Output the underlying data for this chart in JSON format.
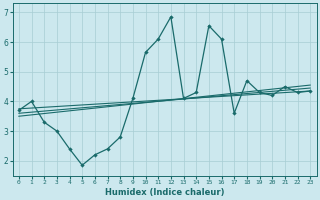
{
  "xlabel": "Humidex (Indice chaleur)",
  "bg_color": "#cce8ee",
  "line_color": "#1a6b6b",
  "grid_color": "#a8cdd4",
  "x_values": [
    0,
    1,
    2,
    3,
    4,
    5,
    6,
    7,
    8,
    9,
    10,
    11,
    12,
    13,
    14,
    15,
    16,
    17,
    18,
    19,
    20,
    21,
    22,
    23
  ],
  "line1_y": [
    3.7,
    4.0,
    3.3,
    3.0,
    2.4,
    1.85,
    2.2,
    2.4,
    2.8,
    4.1,
    5.65,
    6.1,
    6.85,
    4.1,
    4.3,
    6.55,
    6.1,
    3.6,
    4.7,
    4.3,
    4.2,
    4.5,
    4.3,
    4.35
  ],
  "trend1_start": 3.75,
  "trend1_end": 4.35,
  "trend2_start": 3.6,
  "trend2_end": 4.45,
  "trend3_start": 3.5,
  "trend3_end": 4.55,
  "ylim": [
    1.5,
    7.3
  ],
  "xlim": [
    -0.5,
    23.5
  ],
  "yticks": [
    2,
    3,
    4,
    5,
    6,
    7
  ]
}
